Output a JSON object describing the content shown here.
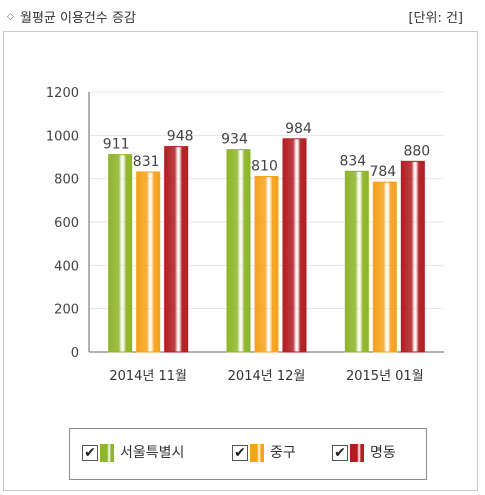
{
  "header": {
    "bullet": "◇",
    "title": "월평균 이용건수 증감",
    "unit": "[단위: 건]"
  },
  "colors": {
    "서울특별시": "#8fb52a",
    "중구": "#f6a31c",
    "명동": "#b11e22"
  },
  "legend": {
    "check": "✔",
    "items": [
      {
        "label": "서울특별시",
        "color": "#8fb52a"
      },
      {
        "label": "중구",
        "color": "#f6a31c"
      },
      {
        "label": "명동",
        "color": "#b11e22"
      }
    ]
  },
  "chart_data": {
    "type": "bar",
    "title": "월평균 이용건수 증감",
    "categories": [
      "2014년 11월",
      "2014년 12월",
      "2015년 01월"
    ],
    "series": [
      {
        "name": "서울특별시",
        "values": [
          911,
          934,
          834
        ]
      },
      {
        "name": "중구",
        "values": [
          831,
          810,
          784
        ]
      },
      {
        "name": "명동",
        "values": [
          948,
          984,
          880
        ]
      }
    ],
    "yticks": [
      0,
      200,
      400,
      600,
      800,
      1000,
      1200
    ],
    "ylim": [
      0,
      1200
    ],
    "grid": true,
    "legend_position": "bottom"
  }
}
